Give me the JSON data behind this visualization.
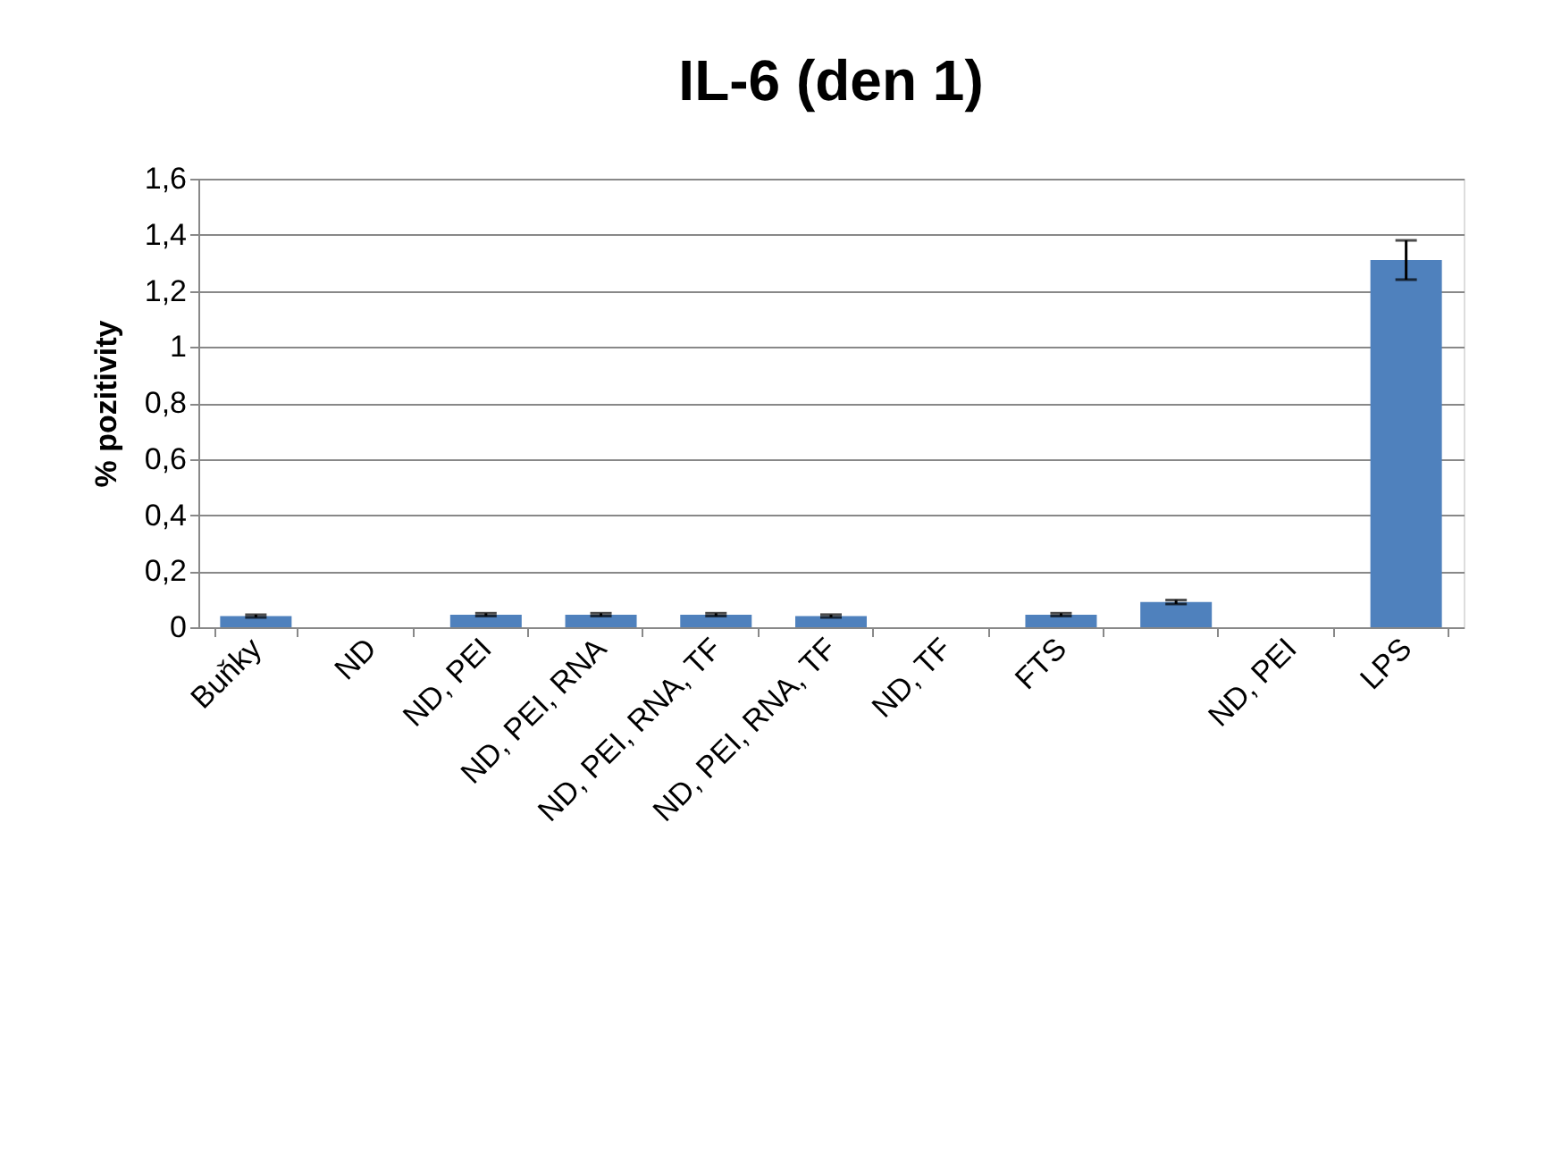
{
  "chart_data": {
    "type": "bar",
    "title": "IL-6 (den 1)",
    "ylabel": "% pozitivity",
    "categories": [
      "Buňky",
      "ND",
      "ND, PEI",
      "ND, PEI, RNA",
      "ND, PEI, RNA, TF",
      "ND, PEI, RNA, TF",
      "ND, TF",
      "FTS",
      null,
      "ND, PEI",
      "LPS"
    ],
    "values": [
      0.04,
      0,
      0.045,
      0.045,
      0.045,
      0.04,
      0,
      0.045,
      0.09,
      0,
      1.31
    ],
    "errors": [
      0.005,
      null,
      0.005,
      0.005,
      0.005,
      0.005,
      null,
      0.005,
      0.007,
      null,
      0.07
    ],
    "color": "#4f81bd",
    "ylim": [
      0,
      1.6
    ],
    "yticks": [
      {
        "value": 0,
        "label": "0"
      },
      {
        "value": 0.2,
        "label": "0,2"
      },
      {
        "value": 0.4,
        "label": "0,4"
      },
      {
        "value": 0.6,
        "label": "0,6"
      },
      {
        "value": 0.8,
        "label": "0,8"
      },
      {
        "value": 1,
        "label": "1"
      },
      {
        "value": 1.2,
        "label": "1,2"
      },
      {
        "value": 1.4,
        "label": "1,4"
      },
      {
        "value": 1.6,
        "label": "1,6"
      }
    ],
    "grid": "y"
  }
}
